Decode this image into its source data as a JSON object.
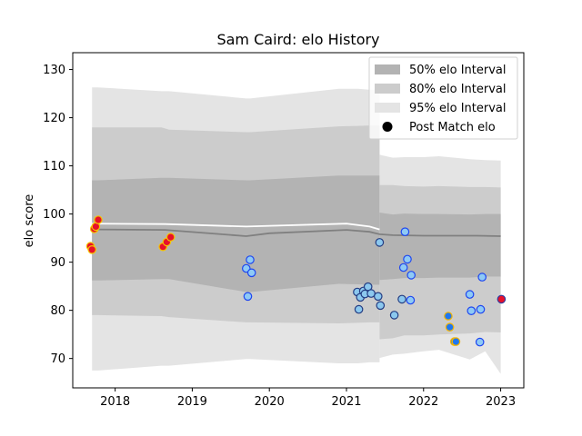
{
  "chart_data": {
    "type": "scatter",
    "title": "Sam Caird: elo History",
    "xlabel": "",
    "ylabel": "elo score",
    "xlim": [
      2017.45,
      2023.3
    ],
    "ylim": [
      63.9,
      133.5
    ],
    "x_ticks": [
      2018,
      2019,
      2020,
      2021,
      2022,
      2023
    ],
    "y_ticks": [
      70,
      80,
      90,
      100,
      110,
      120,
      130
    ],
    "grid": false,
    "legend_position": "top-right",
    "legend": [
      {
        "label": "50% elo Interval",
        "kind": "band",
        "color": "#b3b3b3"
      },
      {
        "label": "80% elo Interval",
        "kind": "band",
        "color": "#cccccc"
      },
      {
        "label": "95% elo Interval",
        "kind": "band",
        "color": "#e4e4e4"
      },
      {
        "label": "Post Match elo",
        "kind": "marker",
        "color": "#000000"
      }
    ],
    "bands_full": {
      "x": [
        2017.7,
        2017.78,
        2018.6,
        2018.7,
        2019.7,
        2019.75,
        2020.9,
        2021.15,
        2021.3,
        2021.43
      ],
      "p95_hi": [
        126.3,
        126.3,
        125.5,
        125.5,
        124.0,
        124.0,
        126.0,
        126.0,
        125.8,
        125.8
      ],
      "p95_lo": [
        67.5,
        67.5,
        68.5,
        68.5,
        69.9,
        69.9,
        69.0,
        69.0,
        69.2,
        69.2
      ],
      "p80_hi": [
        118.0,
        118.0,
        118.0,
        117.5,
        117.0,
        117.0,
        118.2,
        118.3,
        118.4,
        118.4
      ],
      "p80_lo": [
        79.0,
        79.0,
        78.8,
        78.6,
        77.5,
        77.5,
        77.3,
        77.4,
        77.5,
        77.5
      ],
      "p50_hi": [
        107.0,
        107.0,
        107.5,
        107.5,
        107.0,
        107.0,
        108.0,
        108.0,
        108.0,
        108.0
      ],
      "p50_lo": [
        86.2,
        86.2,
        86.5,
        86.5,
        83.8,
        83.8,
        85.5,
        85.4,
        85.3,
        85.3
      ]
    },
    "tails_right": {
      "x": [
        2021.43,
        2021.6,
        2021.75,
        2022.0,
        2022.2,
        2022.6,
        2022.8,
        2023.0
      ],
      "p95_hi": [
        112.3,
        111.7,
        111.8,
        111.8,
        112.0,
        111.4,
        111.2,
        111.1
      ],
      "p95_lo": [
        70.1,
        70.8,
        71.0,
        71.5,
        71.8,
        69.8,
        71.5,
        66.8
      ],
      "p80_hi": [
        106.0,
        106.0,
        105.8,
        105.7,
        105.8,
        105.6,
        105.6,
        105.5
      ],
      "p80_lo": [
        74.0,
        74.2,
        74.8,
        74.8,
        75.0,
        75.2,
        75.5,
        75.4
      ],
      "p50_hi": [
        100.3,
        99.9,
        100.1,
        100.0,
        100.0,
        99.9,
        100.0,
        100.0
      ],
      "p50_lo": [
        86.3,
        86.5,
        86.7,
        86.7,
        86.8,
        86.8,
        87.0,
        87.0
      ]
    },
    "mean_line": {
      "x": [
        2017.7,
        2018.65,
        2019.7,
        2020.0,
        2021.0,
        2021.3,
        2021.43,
        2021.6,
        2022.0,
        2022.6,
        2022.7,
        2023.0
      ],
      "y": [
        96.8,
        96.7,
        95.4,
        96.0,
        96.7,
        96.3,
        95.8,
        95.6,
        95.5,
        95.5,
        95.5,
        95.4
      ]
    },
    "upper_line": {
      "x": [
        2017.7,
        2018.65,
        2019.7,
        2021.0,
        2021.3,
        2021.43
      ],
      "y": [
        98.0,
        97.9,
        97.4,
        98.0,
        97.4,
        96.8
      ]
    },
    "points": [
      {
        "x": 2017.68,
        "y": 93.3,
        "result": "loss"
      },
      {
        "x": 2017.7,
        "y": 92.6,
        "result": "loss"
      },
      {
        "x": 2017.73,
        "y": 96.9,
        "result": "loss"
      },
      {
        "x": 2017.75,
        "y": 97.4,
        "result": "loss"
      },
      {
        "x": 2017.78,
        "y": 98.8,
        "result": "loss"
      },
      {
        "x": 2018.62,
        "y": 93.2,
        "result": "loss"
      },
      {
        "x": 2018.67,
        "y": 94.2,
        "result": "loss"
      },
      {
        "x": 2018.72,
        "y": 95.2,
        "result": "loss"
      },
      {
        "x": 2019.7,
        "y": 88.7,
        "result": "win"
      },
      {
        "x": 2019.72,
        "y": 82.9,
        "result": "win"
      },
      {
        "x": 2019.75,
        "y": 90.5,
        "result": "win"
      },
      {
        "x": 2019.77,
        "y": 87.8,
        "result": "win"
      },
      {
        "x": 2021.14,
        "y": 83.8,
        "result": "mid"
      },
      {
        "x": 2021.16,
        "y": 80.2,
        "result": "mid"
      },
      {
        "x": 2021.18,
        "y": 82.7,
        "result": "mid"
      },
      {
        "x": 2021.22,
        "y": 84.0,
        "result": "mid"
      },
      {
        "x": 2021.24,
        "y": 83.4,
        "result": "mid"
      },
      {
        "x": 2021.28,
        "y": 84.9,
        "result": "mid"
      },
      {
        "x": 2021.32,
        "y": 83.5,
        "result": "mid"
      },
      {
        "x": 2021.41,
        "y": 82.9,
        "result": "mid"
      },
      {
        "x": 2021.44,
        "y": 81.0,
        "result": "mid"
      },
      {
        "x": 2021.43,
        "y": 94.1,
        "result": "mid"
      },
      {
        "x": 2021.62,
        "y": 79.0,
        "result": "mid"
      },
      {
        "x": 2021.72,
        "y": 82.3,
        "result": "mid"
      },
      {
        "x": 2021.74,
        "y": 88.9,
        "result": "win"
      },
      {
        "x": 2021.76,
        "y": 96.3,
        "result": "win"
      },
      {
        "x": 2021.79,
        "y": 90.6,
        "result": "win"
      },
      {
        "x": 2021.83,
        "y": 82.1,
        "result": "win"
      },
      {
        "x": 2021.84,
        "y": 87.3,
        "result": "win"
      },
      {
        "x": 2022.32,
        "y": 78.8,
        "result": "draw"
      },
      {
        "x": 2022.34,
        "y": 76.5,
        "result": "draw"
      },
      {
        "x": 2022.4,
        "y": 73.5,
        "result": "draw"
      },
      {
        "x": 2022.42,
        "y": 73.5,
        "result": "draw"
      },
      {
        "x": 2022.6,
        "y": 83.3,
        "result": "win"
      },
      {
        "x": 2022.62,
        "y": 79.9,
        "result": "win"
      },
      {
        "x": 2022.73,
        "y": 73.4,
        "result": "win"
      },
      {
        "x": 2022.74,
        "y": 80.2,
        "result": "win"
      },
      {
        "x": 2022.76,
        "y": 86.9,
        "result": "win"
      },
      {
        "x": 2023.01,
        "y": 82.3,
        "result": "latest"
      }
    ],
    "marker_colors": {
      "loss": {
        "fill": "#e8102a",
        "edge": "#f5c400"
      },
      "win": {
        "fill": "#8fcaf5",
        "edge": "#1e46f0"
      },
      "mid": {
        "fill": "#8cc8ee",
        "edge": "#233c82"
      },
      "draw": {
        "fill": "#1f77f0",
        "edge": "#f5b400"
      },
      "latest": {
        "fill": "#e8102a",
        "edge": "#2d3ca0"
      }
    },
    "colors": {
      "band95": "#e4e4e4",
      "band80": "#cccccc",
      "band50": "#b3b3b3",
      "mean_line": "#808080",
      "upper_line": "#ffffff"
    }
  }
}
